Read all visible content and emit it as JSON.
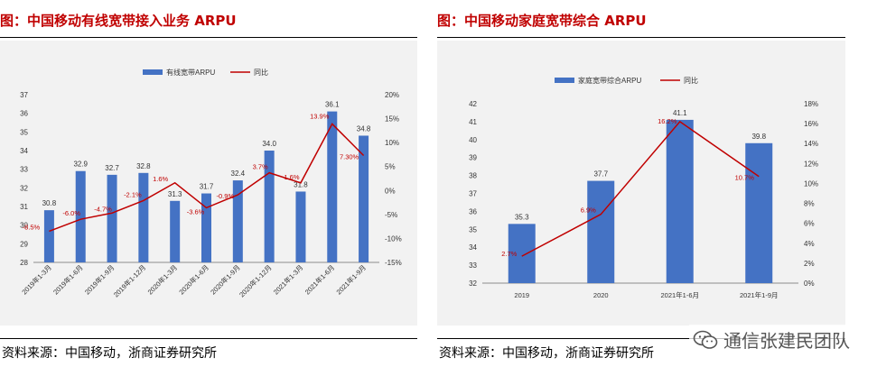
{
  "charts": {
    "left": {
      "title": "图：中国移动有线宽带接入业务 ARPU",
      "source": "资料来源：中国移动，浙商证券研究所"
    },
    "right": {
      "title": "图：中国移动家庭宽带综合 ARPU",
      "source": "资料来源：中国移动，浙商证券研究所"
    }
  },
  "watermark": {
    "text": "通信张建民团队",
    "icon": "wechat-icon"
  },
  "colors": {
    "bar": "#4472c4",
    "line": "#c00000",
    "title": "#c00000",
    "label": "#c00000"
  },
  "chart_data": [
    {
      "type": "bar",
      "title": "图：中国移动有线宽带接入业务 ARPU",
      "categories": [
        "2019年1-3月",
        "2019年1-6月",
        "2019年1-9月",
        "2019年1-12月",
        "2020年1-3月",
        "2020年1-6月",
        "2020年1-9月",
        "2020年1-12月",
        "2021年1-3月",
        "2021年1-6月",
        "2021年1-9月"
      ],
      "series": [
        {
          "name": "有线宽带ARPU",
          "type": "bar",
          "axis": "left",
          "values": [
            30.8,
            32.9,
            32.7,
            32.8,
            31.3,
            31.7,
            32.4,
            34.0,
            31.8,
            36.1,
            34.8
          ],
          "labels": [
            "30.8",
            "32.9",
            "32.7",
            "32.8",
            "31.3",
            "31.7",
            "32.4",
            "34.0",
            "31.8",
            "36.1",
            "34.8"
          ]
        },
        {
          "name": "同比",
          "type": "line",
          "axis": "right",
          "values": [
            -8.5,
            -6.0,
            -4.7,
            -2.1,
            1.6,
            -3.6,
            -0.9,
            3.7,
            1.6,
            13.9,
            7.3
          ],
          "labels": [
            "-8.5%",
            "-6.0%",
            "-4.7%",
            "-2.1%",
            "1.6%",
            "-3.6%",
            "-0.9%",
            "3.7%",
            "1.6%",
            "13.9%",
            "7.30%"
          ]
        }
      ],
      "ylim_left": [
        28,
        37
      ],
      "yticks_left": [
        "28",
        "29",
        "30",
        "31",
        "32",
        "33",
        "34",
        "35",
        "36",
        "37"
      ],
      "ylim_right": [
        -15,
        20
      ],
      "yticks_right": [
        "-15%",
        "-10%",
        "-5%",
        "0%",
        "5%",
        "10%",
        "15%",
        "20%"
      ],
      "legend": "top-center"
    },
    {
      "type": "bar",
      "title": "图：中国移动家庭宽带综合 ARPU",
      "categories": [
        "2019",
        "2020",
        "2021年1-6月",
        "2021年1-9月"
      ],
      "series": [
        {
          "name": "家庭宽带综合ARPU",
          "type": "bar",
          "axis": "left",
          "values": [
            35.3,
            37.7,
            41.1,
            39.8
          ],
          "labels": [
            "35.3",
            "37.7",
            "41.1",
            "39.8"
          ]
        },
        {
          "name": "同比",
          "type": "line",
          "axis": "right",
          "values": [
            2.7,
            6.9,
            16.2,
            10.7
          ],
          "labels": [
            "2.7%",
            "6.9%",
            "16.2%",
            "10.7%"
          ]
        }
      ],
      "ylim_left": [
        32,
        42
      ],
      "yticks_left": [
        "32",
        "33",
        "34",
        "35",
        "36",
        "37",
        "38",
        "39",
        "40",
        "41",
        "42"
      ],
      "ylim_right": [
        0,
        18
      ],
      "yticks_right": [
        "0%",
        "2%",
        "4%",
        "6%",
        "8%",
        "10%",
        "12%",
        "14%",
        "16%",
        "18%"
      ],
      "legend": "top-center"
    }
  ]
}
